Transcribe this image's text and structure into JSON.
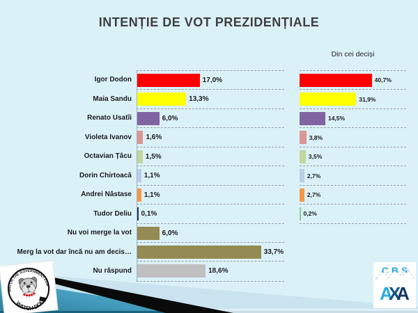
{
  "slide": {
    "title": "INTENȚIE DE VOT PREZIDENȚIALE",
    "background_color": "#DBF1F8",
    "title_color": "#3F3F3F"
  },
  "chart_data": [
    {
      "type": "bar",
      "orientation": "horizontal",
      "title": "",
      "categories": [
        "Igor Dodon",
        "Maia Sandu",
        "Renato Usatîi",
        "Violeta Ivanov",
        "Octavian Țâcu",
        "Dorin Chirtoacă",
        "Andrei Năstase",
        "Tudor Deliu",
        "Nu voi merge la vot",
        "Merg la vot dar încă nu am decis…",
        "Nu răspund"
      ],
      "values": [
        17.0,
        13.3,
        6.0,
        1.6,
        1.5,
        1.1,
        1.1,
        0.1,
        6.0,
        33.7,
        18.6
      ],
      "value_labels": [
        "17,0%",
        "13,3%",
        "6,0%",
        "1,6%",
        "1,5%",
        "1,1%",
        "1,1%",
        "0,1%",
        "6,0%",
        "33,7%",
        "18,6%"
      ],
      "colors": [
        "#FF0000",
        "#FFFF00",
        "#8064A2",
        "#D99694",
        "#C3D69B",
        "#B9CDE5",
        "#F79646",
        "#17375E",
        "#948A54",
        "#948A54",
        "#BFBFBF"
      ],
      "xlim": [
        0,
        40
      ],
      "grid": "dashed horizontal row separators",
      "legend": "none"
    },
    {
      "type": "bar",
      "orientation": "horizontal",
      "title": "Din cei deciși",
      "categories": [
        "Igor Dodon",
        "Maia Sandu",
        "Renato Usatîi",
        "Violeta Ivanov",
        "Octavian Țâcu",
        "Dorin Chirtoacă",
        "Andrei Năstase",
        "Tudor Deliu"
      ],
      "values": [
        40.7,
        31.9,
        14.5,
        3.8,
        3.5,
        2.7,
        2.7,
        0.2
      ],
      "value_labels": [
        "40,7%",
        "31,9%",
        "14,5%",
        "3,8%",
        "3,5%",
        "2,7%",
        "2,7%",
        "0,2%"
      ],
      "colors": [
        "#FF0000",
        "#FFFF00",
        "#8064A2",
        "#D99694",
        "#C3D69B",
        "#B9CDE5",
        "#F79646",
        "#8FCE8F"
      ],
      "xlim": [
        0,
        60
      ],
      "grid": "dashed horizontal row separators",
      "legend": "none"
    }
  ],
  "logos": {
    "watchdog": {
      "arc_text_top": "WE WATCH THE GOVERNMENT FOR YOU",
      "arc_text_bottom": "WATCH DOG"
    },
    "cbs_axa": {
      "top": "CBS",
      "letters": [
        {
          "ch": "A",
          "color": "#2AAAE1"
        },
        {
          "ch": "X",
          "color": "#14537F"
        },
        {
          "ch": "A",
          "color": "#133A66"
        }
      ]
    }
  },
  "decoration_colors": {
    "pale_triangle": "#C9E4EF",
    "teal_dark": "#2E7E9E",
    "teal_light": "#70C2DF",
    "swoosh": "#0A0A0A",
    "bottom_strip": "#1A637D"
  }
}
